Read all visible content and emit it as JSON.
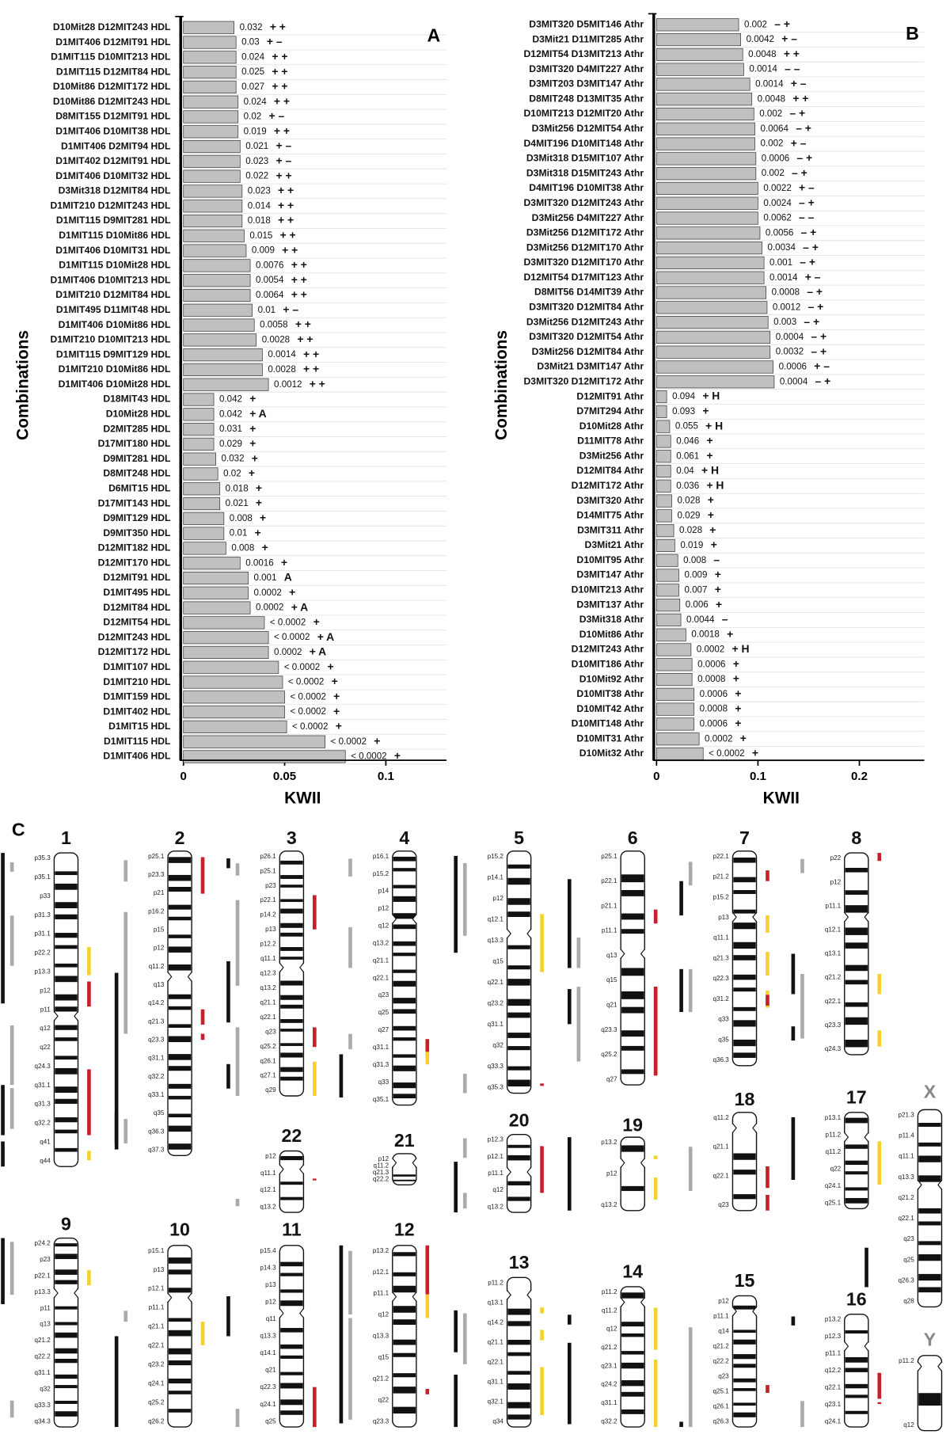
{
  "chart_data": [
    {
      "type": "bar",
      "orientation": "horizontal",
      "panel_label": "A",
      "x_label": "KWII",
      "y_label": "Combinations",
      "color": "#c0c0c0",
      "xlim": [
        0,
        0.13
      ],
      "xticks": [
        0,
        0.05,
        0.1
      ],
      "grid": true,
      "categories": [
        "D10Mit28 D12MIT243 HDL",
        "D1MIT406 D12MIT91 HDL",
        "D1MIT115 D10MIT213 HDL",
        "D1MIT115 D12MIT84 HDL",
        "D10Mit86 D12MIT172 HDL",
        "D10Mit86 D12MIT243 HDL",
        "D8MIT155 D12MIT91 HDL",
        "D1MIT406 D10MIT38 HDL",
        "D1MIT406 D2MIT94 HDL",
        "D1MIT402 D12MIT91 HDL",
        "D1MIT406 D10MIT32 HDL",
        "D3Mit318 D12MIT84 HDL",
        "D1MIT210 D12MIT243 HDL",
        "D1MIT115 D9MIT281 HDL",
        "D1MIT115 D10Mit86 HDL",
        "D1MIT406 D10MIT31 HDL",
        "D1MIT115 D10Mit28 HDL",
        "D1MIT406 D10MIT213 HDL",
        "D1MIT210 D12MIT84 HDL",
        "D1MIT495 D11MIT48 HDL",
        "D1MIT406 D10Mit86 HDL",
        "D1MIT210 D10MIT213 HDL",
        "D1MIT115 D9MIT129 HDL",
        "D1MIT210 D10Mit86 HDL",
        "D1MIT406 D10Mit28 HDL",
        "D18MIT43 HDL",
        "D10Mit28 HDL",
        "D2MIT285 HDL",
        "D17MIT180 HDL",
        "D9MIT281 HDL",
        "D8MIT248 HDL",
        "D6MIT15 HDL",
        "D17MIT143 HDL",
        "D9MIT129 HDL",
        "D9MIT350 HDL",
        "D12MIT182 HDL",
        "D12MIT170 HDL",
        "D12MIT91 HDL",
        "D1MIT495 HDL",
        "D12MIT84 HDL",
        "D12MIT54 HDL",
        "D12MIT243 HDL",
        "D12MIT172 HDL",
        "D1MIT107 HDL",
        "D1MIT210 HDL",
        "D1MIT159 HDL",
        "D1MIT402 HDL",
        "D1MIT15 HDL",
        "D1MIT115 HDL",
        "D1MIT406 HDL"
      ],
      "values": [
        0.025,
        0.026,
        0.026,
        0.026,
        0.026,
        0.027,
        0.027,
        0.027,
        0.028,
        0.028,
        0.028,
        0.029,
        0.029,
        0.029,
        0.03,
        0.031,
        0.033,
        0.033,
        0.033,
        0.034,
        0.035,
        0.036,
        0.039,
        0.039,
        0.042,
        0.015,
        0.015,
        0.015,
        0.015,
        0.016,
        0.017,
        0.018,
        0.018,
        0.02,
        0.02,
        0.021,
        0.028,
        0.032,
        0.032,
        0.033,
        0.04,
        0.042,
        0.042,
        0.047,
        0.049,
        0.05,
        0.05,
        0.051,
        0.07,
        0.08
      ],
      "pvalue_labels": [
        "0.032",
        "0.03",
        "0.024",
        "0.025",
        "0.027",
        "0.024",
        "0.02",
        "0.019",
        "0.021",
        "0.023",
        "0.022",
        "0.023",
        "0.014",
        "0.018",
        "0.015",
        "0.009",
        "0.0076",
        "0.0054",
        "0.0064",
        "0.01",
        "0.0058",
        "0.0028",
        "0.0014",
        "0.0028",
        "0.0012",
        "0.042",
        "0.042",
        "0.031",
        "0.029",
        "0.032",
        "0.02",
        "0.018",
        "0.021",
        "0.008",
        "0.01",
        "0.008",
        "0.0016",
        "0.001",
        "0.0002",
        "0.0002",
        "< 0.0002",
        "< 0.0002",
        "0.0002",
        "< 0.0002",
        "< 0.0002",
        "< 0.0002",
        "< 0.0002",
        "< 0.0002",
        "< 0.0002",
        "< 0.0002"
      ],
      "sign_labels": [
        "+ +",
        "+ –",
        "+ +",
        "+ +",
        "+ +",
        "+ +",
        "+ –",
        "+ +",
        "+ –",
        "+ –",
        "+ +",
        "+ +",
        "+ +",
        "+ +",
        "+ +",
        "+ +",
        "+ +",
        "+ +",
        "+ +",
        "+ –",
        "+ +",
        "+ +",
        "+ +",
        "+ +",
        "+ +",
        "+",
        "+ A",
        "+",
        "+",
        "+",
        "+",
        "+",
        "+",
        "+",
        "+",
        "+",
        "+",
        "A",
        "+",
        "+ A",
        "+",
        "+ A",
        "+ A",
        "+",
        "+",
        "+",
        "+",
        "+",
        "+",
        "+"
      ]
    },
    {
      "type": "bar",
      "orientation": "horizontal",
      "panel_label": "B",
      "x_label": "KWII",
      "y_label": "Combinations",
      "color": "#c0c0c0",
      "xlim": [
        0,
        0.264
      ],
      "xticks": [
        0,
        0.1,
        0.2
      ],
      "grid": true,
      "categories": [
        "D3MIT320 D5MIT146 Athr",
        "D3Mit21 D11MIT285 Athr",
        "D12MIT54 D13MIT213 Athr",
        "D3MIT320 D4MIT227 Athr",
        "D3MIT203 D3MIT147 Athr",
        "D8MIT248 D13MIT35 Athr",
        "D10MIT213 D12MIT20 Athr",
        "D3Mit256 D12MIT54 Athr",
        "D4MIT196 D10MIT148 Athr",
        "D3Mit318 D15MIT107 Athr",
        "D3Mit318 D15MIT243 Athr",
        "D4MIT196 D10MIT38 Athr",
        "D3MIT320 D12MIT243 Athr",
        "D3Mit256 D4MIT227 Athr",
        "D3Mit256 D12MIT172 Athr",
        "D3Mit256 D12MIT170 Athr",
        "D3MIT320 D12MIT170 Athr",
        "D12MIT54 D17MIT123 Athr",
        "D8MIT56 D14MIT39 Athr",
        "D3MIT320 D12MIT84 Athr",
        "D3Mit256 D12MIT243 Athr",
        "D3MIT320 D12MIT54 Athr",
        "D3Mit256 D12MIT84 Athr",
        "D3Mit21 D3MIT147 Athr",
        "D3MIT320 D12MIT172 Athr",
        "D12MIT91 Athr",
        "D7MIT294 Athr",
        "D10Mit28 Athr",
        "D11MIT78 Athr",
        "D3Mit256 Athr",
        "D12MIT84 Athr",
        "D12MIT172 Athr",
        "D3MIT320 Athr",
        "D14MIT75 Athr",
        "D3MIT311 Athr",
        "D3Mit21 Athr",
        "D10MIT95 Athr",
        "D3MIT147 Athr",
        "D10MIT213 Athr",
        "D3MIT137 Athr",
        "D3Mit318 Athr",
        "D10Mit86 Athr",
        "D12MIT243 Athr",
        "D10MIT186 Athr",
        "D10Mit92 Athr",
        "D10MIT38 Athr",
        "D10MIT42 Athr",
        "D10MIT148 Athr",
        "D10MIT31 Athr",
        "D10Mit32 Athr"
      ],
      "values": [
        0.081,
        0.083,
        0.085,
        0.086,
        0.092,
        0.094,
        0.096,
        0.097,
        0.097,
        0.098,
        0.098,
        0.1,
        0.1,
        0.1,
        0.102,
        0.104,
        0.106,
        0.106,
        0.108,
        0.109,
        0.11,
        0.112,
        0.112,
        0.115,
        0.116,
        0.01,
        0.01,
        0.013,
        0.014,
        0.014,
        0.014,
        0.014,
        0.015,
        0.015,
        0.017,
        0.018,
        0.021,
        0.022,
        0.022,
        0.023,
        0.024,
        0.029,
        0.034,
        0.035,
        0.035,
        0.037,
        0.037,
        0.037,
        0.042,
        0.046
      ],
      "pvalue_labels": [
        "0.002",
        "0.0042",
        "0.0048",
        "0.0014",
        "0.0014",
        "0.0048",
        "0.002",
        "0.0064",
        "0.002",
        "0.0006",
        "0.002",
        "0.0022",
        "0.0024",
        "0.0062",
        "0.0056",
        "0.0034",
        "0.001",
        "0.0014",
        "0.0008",
        "0.0012",
        "0.003",
        "0.0004",
        "0.0032",
        "0.0006",
        "0.0004",
        "0.094",
        "0.093",
        "0.055",
        "0.046",
        "0.061",
        "0.04",
        "0.036",
        "0.028",
        "0.029",
        "0.028",
        "0.019",
        "0.008",
        "0.009",
        "0.007",
        "0.006",
        "0.0044",
        "0.0018",
        "0.0002",
        "0.0006",
        "0.0008",
        "0.0006",
        "0.0008",
        "0.0006",
        "0.0002",
        "< 0.0002"
      ],
      "sign_labels": [
        "– +",
        "+ –",
        "+ +",
        "– –",
        "+ –",
        "+ +",
        "– +",
        "– +",
        "+ –",
        "– +",
        "– +",
        "+ –",
        "– +",
        "– –",
        "– +",
        "– +",
        "– +",
        "+ –",
        "– +",
        "– +",
        "– +",
        "– +",
        "– +",
        "+ –",
        "– +",
        "+ H",
        "+",
        "+ H",
        "+",
        "+",
        "+ H",
        "+ H",
        "+",
        "+",
        "+",
        "+",
        "–",
        "+",
        "+",
        "+",
        "–",
        "+",
        "+ H",
        "+",
        "+",
        "+",
        "+",
        "+",
        "+",
        "+"
      ]
    }
  ],
  "ideogram": {
    "panel_label": "C",
    "chromosomes": [
      {
        "name": "1",
        "bands": [
          "p35.3",
          "p35.1",
          "p33",
          "p31.3",
          "p31.1",
          "p22.2",
          "p13.3",
          "p12",
          "p11",
          "q12",
          "q22",
          "q24.3",
          "q31.1",
          "q31.3",
          "q32.2",
          "q41",
          "q44"
        ]
      },
      {
        "name": "2",
        "bands": [
          "p25.1",
          "p23.3",
          "p21",
          "p16.2",
          "p15",
          "p12",
          "q11.2",
          "q13",
          "q14.2",
          "q21.3",
          "q23.3",
          "q31.1",
          "q32.2",
          "q33.1",
          "q35",
          "q36.3",
          "q37.3"
        ]
      },
      {
        "name": "3",
        "bands": [
          "p26.1",
          "p25.1",
          "p23",
          "p22.1",
          "p14.2",
          "p13",
          "p12.2",
          "q11.1",
          "q12.3",
          "q13.2",
          "q21.1",
          "q22.1",
          "q23",
          "q25.2",
          "q26.1",
          "q27.1",
          "q29"
        ]
      },
      {
        "name": "4",
        "bands": [
          "p16.1",
          "p15.2",
          "p14",
          "p12",
          "q12",
          "q13.2",
          "q21.1",
          "q22.1",
          "q23",
          "q25",
          "q27",
          "q31.1",
          "q31.3",
          "q33",
          "q35.1"
        ]
      },
      {
        "name": "5",
        "bands": [
          "p15.2",
          "p14.1",
          "p12",
          "q12.1",
          "q13.3",
          "q15",
          "q22.1",
          "q23.2",
          "q31.1",
          "q32",
          "q33.3",
          "q35.3"
        ]
      },
      {
        "name": "6",
        "bands": [
          "p25.1",
          "p22.1",
          "p21.1",
          "p11.1",
          "q13",
          "q15",
          "q21",
          "q23.3",
          "q25.2",
          "q27"
        ]
      },
      {
        "name": "7",
        "bands": [
          "p22.1",
          "p21.2",
          "p15.2",
          "p13",
          "q11.1",
          "q21.3",
          "q22.3",
          "q31.2",
          "q33",
          "q35",
          "q36.3"
        ]
      },
      {
        "name": "8",
        "bands": [
          "p22",
          "p12",
          "p11.1",
          "q12.1",
          "q13.1",
          "q21.2",
          "q22.1",
          "q23.3",
          "q24.3"
        ]
      },
      {
        "name": "9",
        "bands": [
          "p24.2",
          "p23",
          "p22.1",
          "p13.3",
          "p11",
          "q13",
          "q21.2",
          "q22.2",
          "q31.1",
          "q32",
          "q33.3",
          "q34.3"
        ]
      },
      {
        "name": "10",
        "bands": [
          "p15.1",
          "p13",
          "p12.1",
          "p11.1",
          "q21.1",
          "q22.1",
          "q23.2",
          "q24.1",
          "q25.2",
          "q26.2"
        ]
      },
      {
        "name": "11",
        "bands": [
          "p15.4",
          "p14.3",
          "p13",
          "p12",
          "q11",
          "q13.3",
          "q14.1",
          "q21",
          "q22.3",
          "q24.1",
          "q25"
        ]
      },
      {
        "name": "12",
        "bands": [
          "p13.2",
          "p12.1",
          "p11.1",
          "q12",
          "q13.3",
          "q15",
          "q21.2",
          "q22",
          "q23.3"
        ]
      },
      {
        "name": "13",
        "bands": [
          "p11.2",
          "q13.1",
          "q14.2",
          "q21.1",
          "q22.1",
          "q31.1",
          "q32.1",
          "q34"
        ]
      },
      {
        "name": "14",
        "bands": [
          "p11.2",
          "q11.2",
          "q12",
          "q21.2",
          "q23.1",
          "q24.2",
          "q31.1",
          "q32.2"
        ]
      },
      {
        "name": "15",
        "bands": [
          "p12",
          "p11.1",
          "q14",
          "q21.2",
          "q22.2",
          "q23",
          "q25.1",
          "q26.1",
          "q26.3"
        ]
      },
      {
        "name": "16",
        "bands": [
          "p13.2",
          "p12.3",
          "p11.1",
          "q12.2",
          "q22.1",
          "q23.1",
          "q24.1"
        ]
      },
      {
        "name": "17",
        "bands": [
          "p13.1",
          "p11.2",
          "q11.2",
          "q22",
          "q24.1",
          "q25.1"
        ]
      },
      {
        "name": "18",
        "bands": [
          "q11.2",
          "q21.1",
          "q22.1",
          "q23"
        ]
      },
      {
        "name": "19",
        "bands": [
          "p13.2",
          "p12",
          "q13.2"
        ]
      },
      {
        "name": "20",
        "bands": [
          "p12.3",
          "p12.1",
          "p11.1",
          "q12",
          "q13.2"
        ]
      },
      {
        "name": "21",
        "bands": [
          "p12",
          "q11.2",
          "q21.3",
          "q22.2"
        ]
      },
      {
        "name": "22",
        "bands": [
          "p12",
          "q11.1",
          "q12.1",
          "q13.2"
        ]
      },
      {
        "name": "X",
        "bands": [
          "p21.3",
          "p11.4",
          "q11.1",
          "q13.3",
          "q21.2",
          "q22.1",
          "q23",
          "q25",
          "q26.3",
          "q28"
        ]
      },
      {
        "name": "Y",
        "bands": [
          "p11.2",
          "q12"
        ]
      }
    ]
  }
}
